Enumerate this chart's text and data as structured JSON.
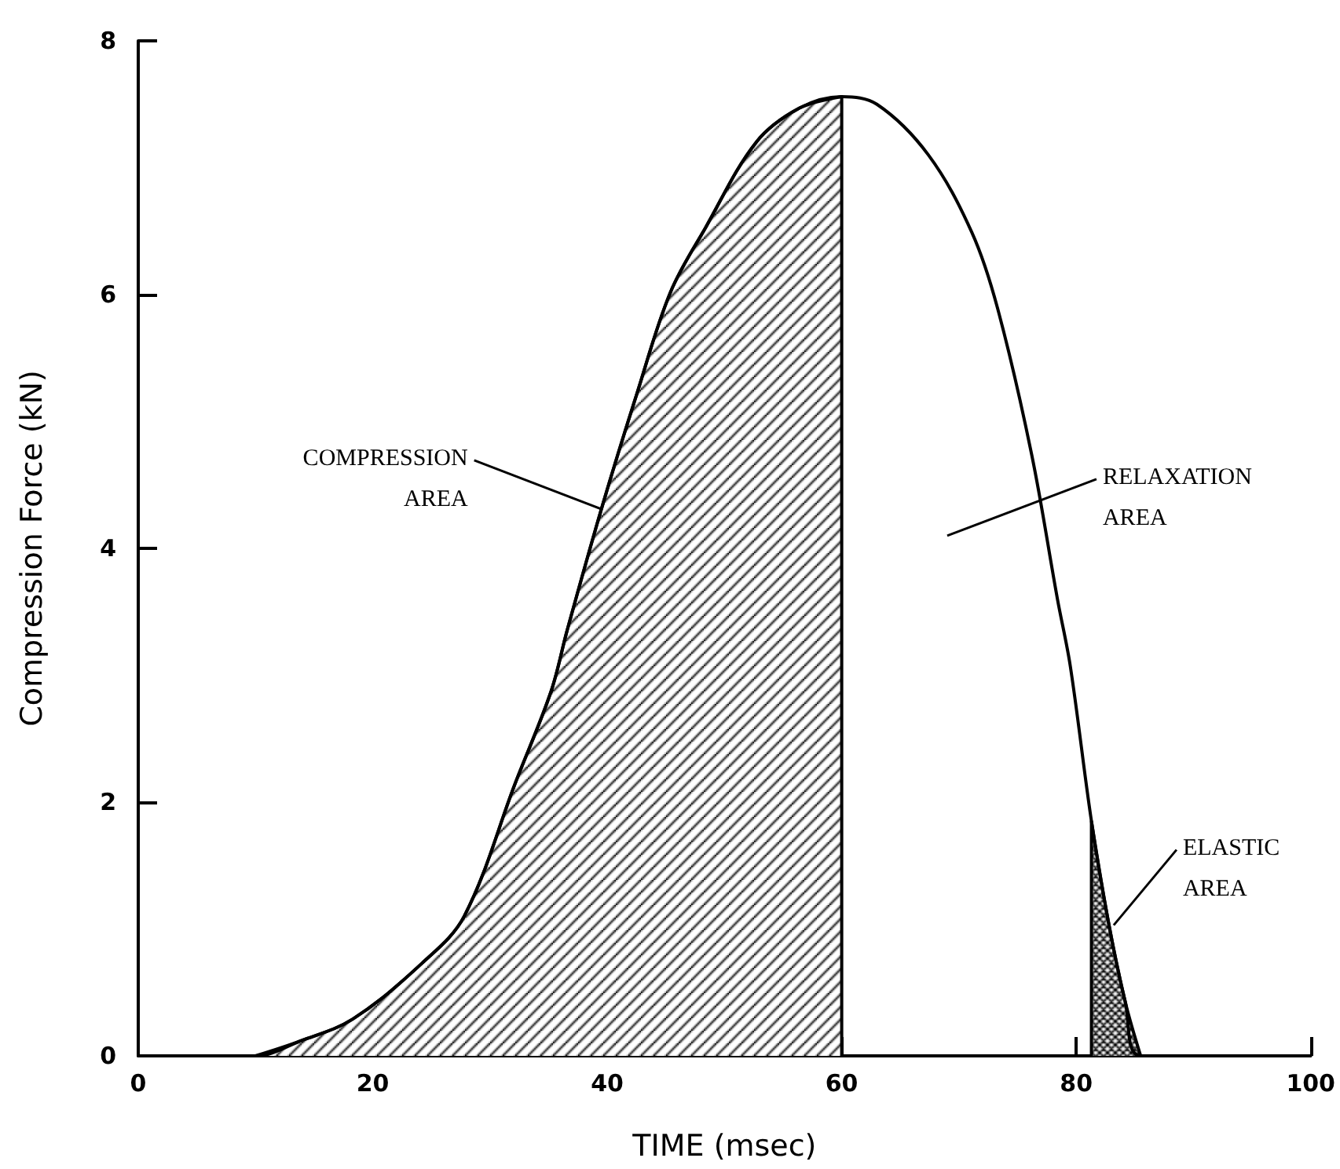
{
  "chart_data": {
    "type": "line",
    "xlabel": "TIME (msec)",
    "ylabel": "Compression Force (kN)",
    "xlim": [
      0,
      100
    ],
    "xticks": [
      0,
      20,
      40,
      60,
      80,
      100
    ],
    "ylim": [
      0,
      8
    ],
    "yticks": [
      0,
      2,
      4,
      6,
      8
    ],
    "grid": false,
    "marker": "none",
    "line_style": "solid",
    "series": [
      {
        "color": "#000000",
        "x": [
          0,
          10,
          13.9,
          18.3,
          24.2,
          27.8,
          32.2,
          35.2,
          36.6,
          39.6,
          42.5,
          45.4,
          48.4,
          52.7,
          56.4,
          60,
          63,
          67.4,
          71.1,
          73.3,
          76.2,
          78.4,
          79.5,
          81.3,
          82.8,
          84.2,
          85.5,
          100
        ],
        "values": [
          0,
          0,
          0.12,
          0.29,
          0.73,
          1.1,
          2.16,
          2.87,
          3.36,
          4.34,
          5.21,
          6.02,
          6.53,
          7.2,
          7.47,
          7.56,
          7.5,
          7.1,
          6.49,
          5.89,
          4.74,
          3.6,
          3.07,
          1.85,
          1.03,
          0.42,
          0,
          0
        ]
      },
      {
        "type": "area",
        "color": "#000000",
        "x": [
          10,
          13.9,
          18.3,
          24.2,
          27.8,
          32.2,
          35.2,
          36.6,
          39.6,
          42.5,
          45.4,
          48.4,
          52.7,
          56.4,
          60,
          60
        ],
        "values": [
          0,
          0.12,
          0.29,
          0.73,
          1.1,
          2.16,
          2.87,
          3.36,
          4.34,
          5.21,
          6.02,
          6.53,
          7.2,
          7.47,
          7.56,
          0
        ]
      },
      {
        "type": "area",
        "color": "#000000",
        "x": [
          81.3,
          81.3,
          82.8,
          84.2,
          85.5
        ],
        "values": [
          0,
          1.85,
          1.03,
          0.42,
          0
        ]
      }
    ],
    "annotations": [
      "COMPRESSION\nAREA",
      "RELAXATION\nAREA",
      {
        "text": "ELASTIC\nAREA",
        "x": 83.2,
        "y": 1.03
      }
    ]
  }
}
